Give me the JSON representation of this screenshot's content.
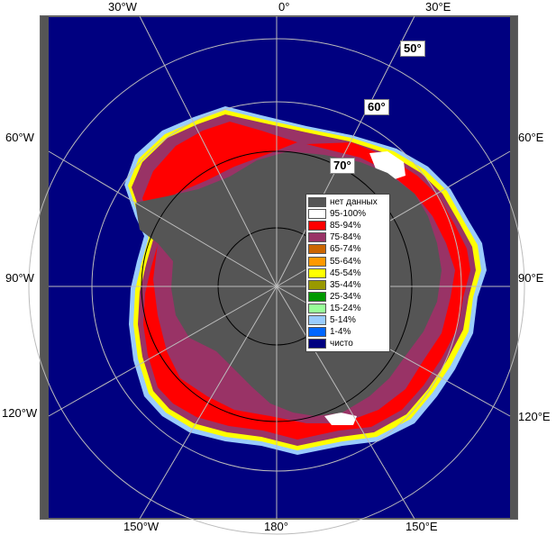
{
  "map": {
    "meridian_labels_top": [
      "30°W",
      "0°",
      "30°E"
    ],
    "meridian_labels_bottom": [
      "150°W",
      "180°",
      "150°E"
    ],
    "meridian_labels_left": [
      "60°W",
      "90°W",
      "120°W"
    ],
    "meridian_labels_right": [
      "60°E",
      "90°E",
      "120°E"
    ],
    "latitude_labels": [
      "50°",
      "60°",
      "70°"
    ]
  },
  "legend": {
    "items": [
      {
        "label": "нет данных",
        "color": "#555555"
      },
      {
        "label": "95-100%",
        "color": "#ffffff"
      },
      {
        "label": "85-94%",
        "color": "#ff0000"
      },
      {
        "label": "75-84%",
        "color": "#993366"
      },
      {
        "label": "65-74%",
        "color": "#cc6600"
      },
      {
        "label": "55-64%",
        "color": "#ff9900"
      },
      {
        "label": "45-54%",
        "color": "#ffff00"
      },
      {
        "label": "35-44%",
        "color": "#999900"
      },
      {
        "label": "25-34%",
        "color": "#009900"
      },
      {
        "label": "15-24%",
        "color": "#99ff99"
      },
      {
        "label": "5-14%",
        "color": "#99ccff"
      },
      {
        "label": "1-4%",
        "color": "#0066ff"
      },
      {
        "label": "чисто",
        "color": "#000080"
      }
    ]
  },
  "colors": {
    "ocean": "#000080",
    "no_data": "#555555",
    "frame": "#666666"
  }
}
